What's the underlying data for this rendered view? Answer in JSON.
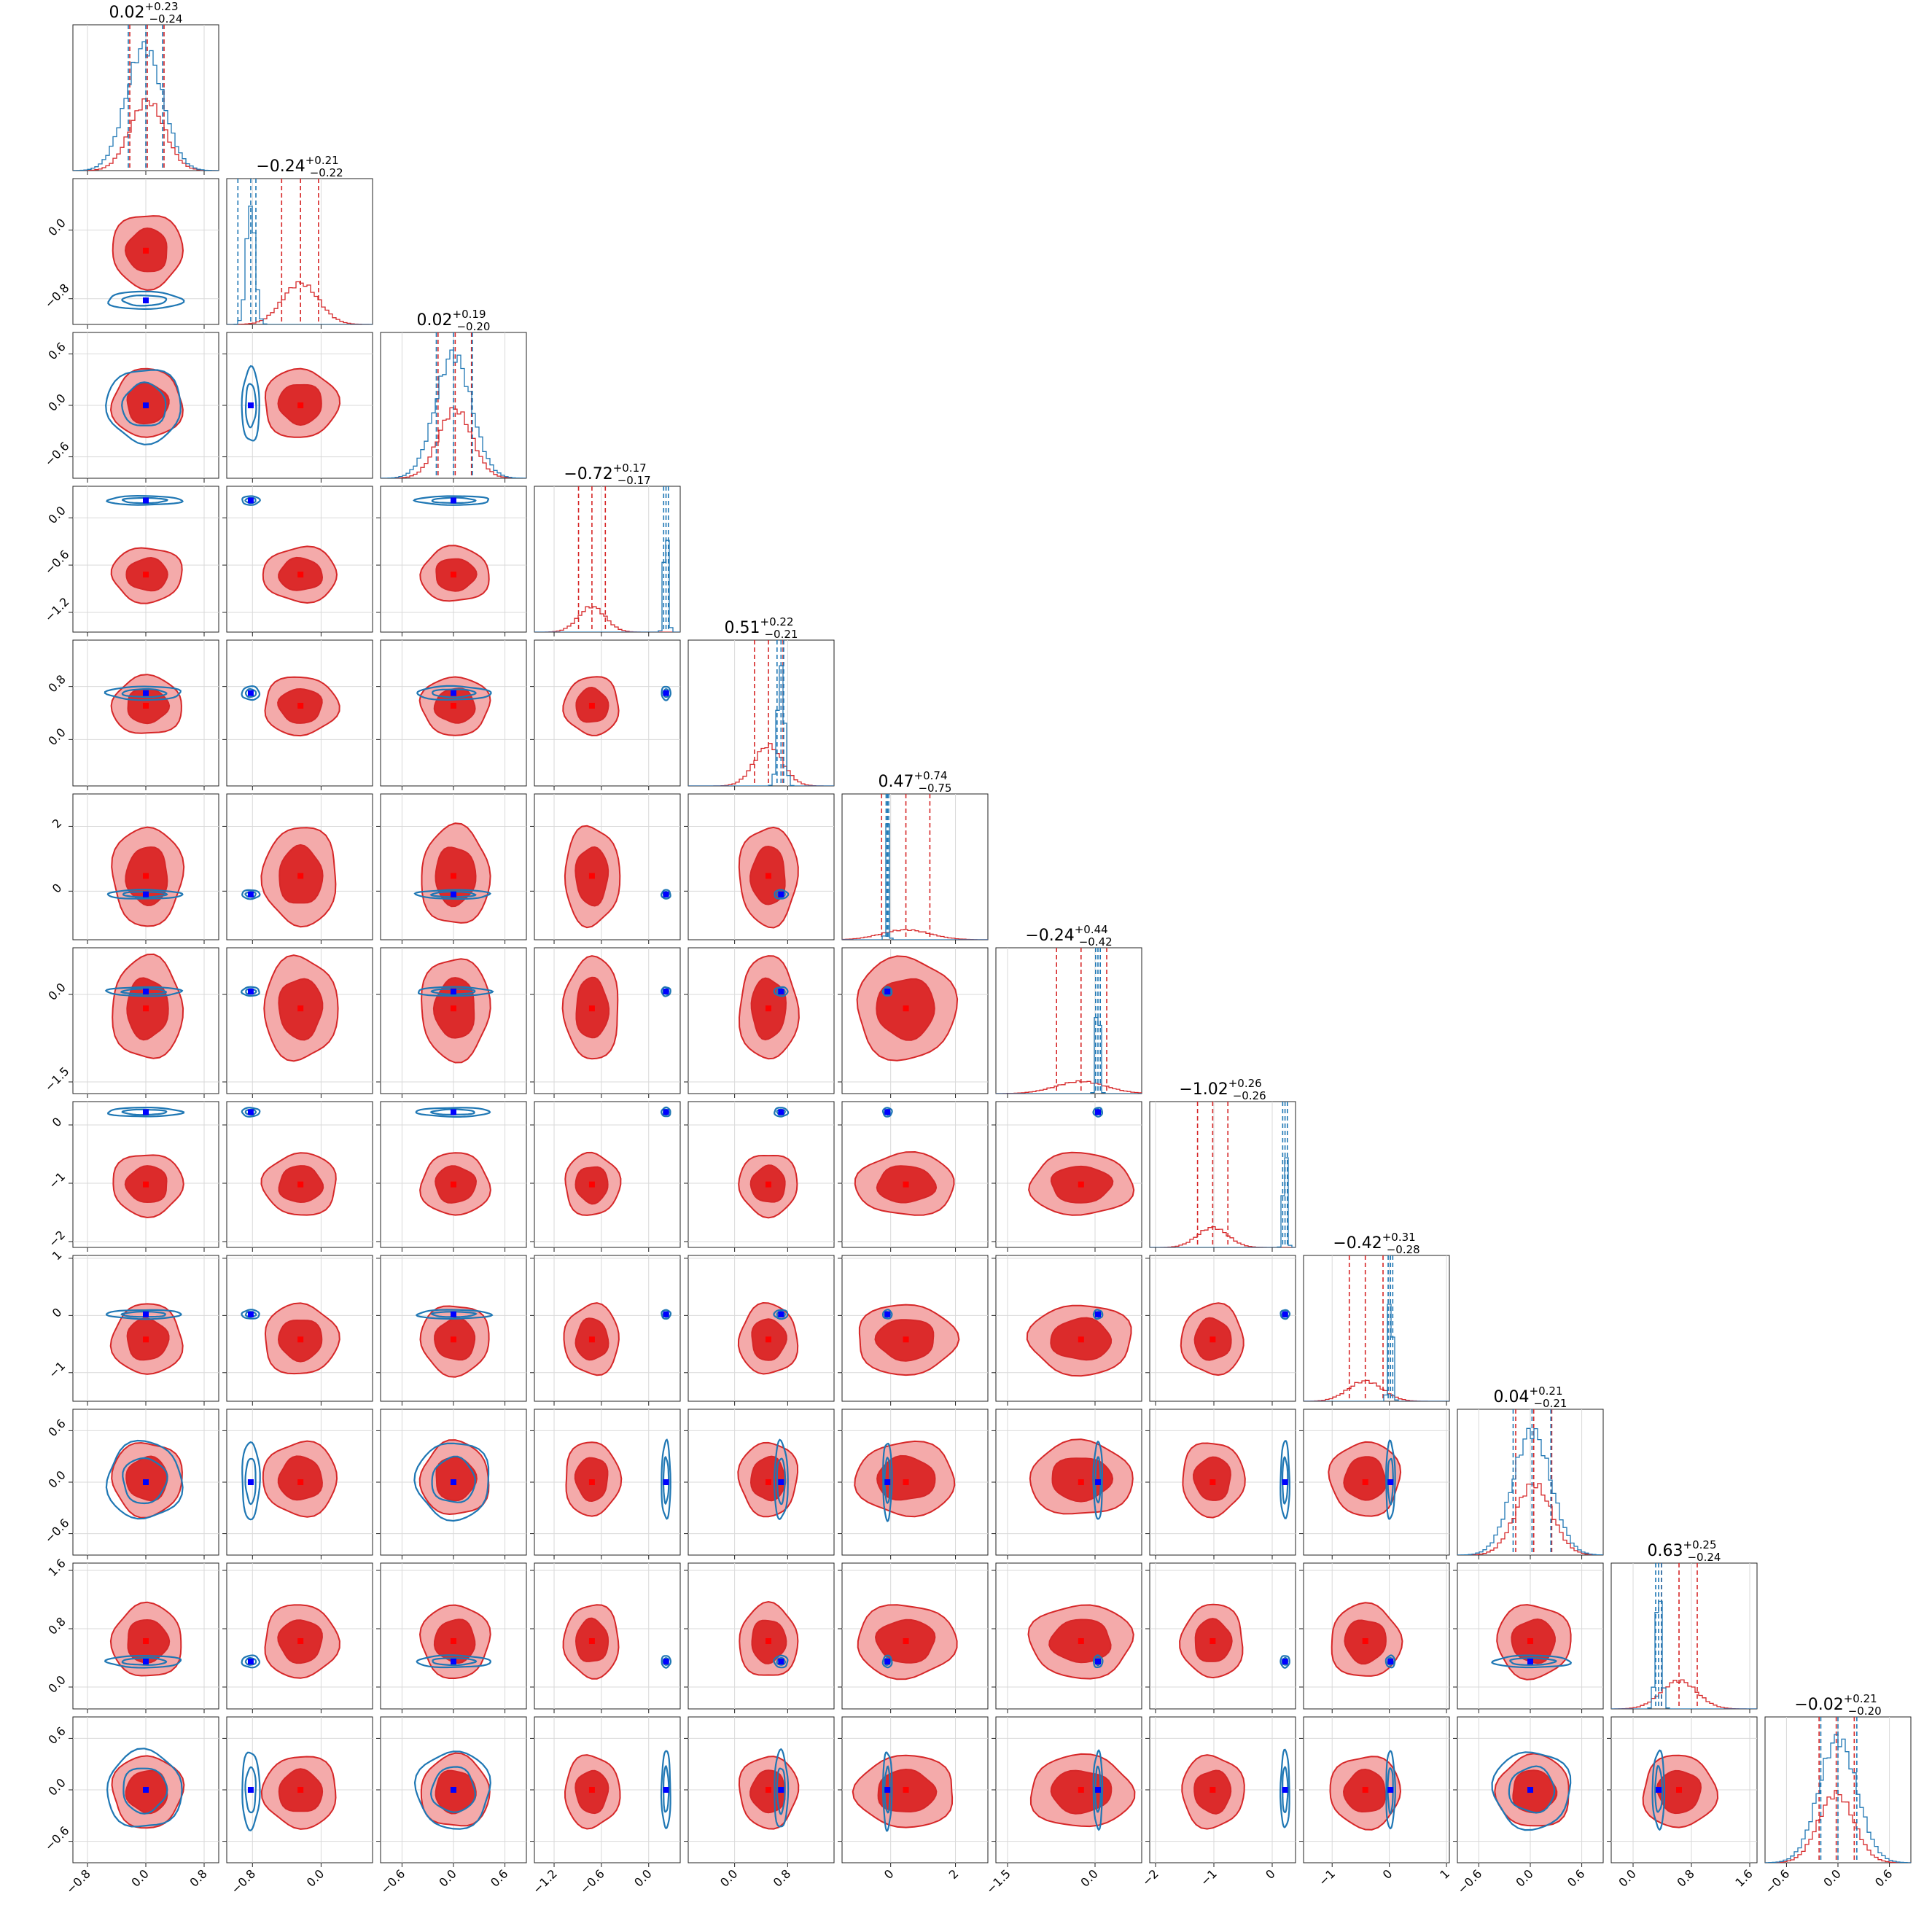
{
  "chart_data": {
    "type": "corner",
    "grid": true,
    "series": [
      {
        "name": "",
        "color": "#d62728",
        "marker_color": "#ff0000"
      },
      {
        "name": "",
        "color": "#1f77b4",
        "marker_color": "#0000ff"
      }
    ],
    "parameters": [
      {
        "title": "0.02",
        "plus": "+0.23",
        "minus": "−0.24",
        "range": [
          -1.0,
          1.0
        ],
        "ticks": [
          -0.8,
          0.0,
          0.8
        ],
        "tick_labels": [
          "−0.8",
          "0.0",
          "0.8"
        ],
        "red": {
          "mean": 0.02,
          "sd": 0.235,
          "q": [
            -0.22,
            0.02,
            0.25
          ]
        },
        "blue": {
          "mean": -0.02,
          "sd": 0.25,
          "q": [
            -0.24,
            0.0,
            0.23
          ]
        },
        "truth": [
          0.0,
          0.0
        ]
      },
      {
        "title": "−0.24",
        "plus": "+0.21",
        "minus": "−0.22",
        "range": [
          -1.1,
          0.6
        ],
        "ticks": [
          -0.8,
          0.0
        ],
        "tick_labels": [
          "−0.8",
          "0.0"
        ],
        "red": {
          "mean": -0.24,
          "sd": 0.21,
          "q": [
            -0.46,
            -0.24,
            -0.03
          ]
        },
        "blue": {
          "mean": -0.82,
          "sd": 0.05,
          "q": [
            -0.97,
            -0.82,
            -0.76
          ]
        },
        "truth": [
          -0.24,
          -0.82
        ]
      },
      {
        "title": "0.02",
        "plus": "+0.19",
        "minus": "−0.20",
        "range": [
          -0.85,
          0.85
        ],
        "ticks": [
          -0.6,
          0.0,
          0.6
        ],
        "tick_labels": [
          "−0.6",
          "0.0",
          "0.6"
        ],
        "red": {
          "mean": 0.02,
          "sd": 0.195,
          "q": [
            -0.18,
            0.02,
            0.21
          ]
        },
        "blue": {
          "mean": 0.0,
          "sd": 0.21,
          "q": [
            -0.2,
            0.0,
            0.22
          ]
        },
        "truth": [
          0.0,
          0.0
        ]
      },
      {
        "title": "−0.72",
        "plus": "+0.17",
        "minus": "−0.17",
        "range": [
          -1.45,
          0.4
        ],
        "ticks": [
          -1.2,
          -0.6,
          0.0
        ],
        "tick_labels": [
          "−1.2",
          "−0.6",
          "0.0"
        ],
        "red": {
          "mean": -0.72,
          "sd": 0.17,
          "q": [
            -0.89,
            -0.72,
            -0.55
          ]
        },
        "blue": {
          "mean": 0.22,
          "sd": 0.025,
          "q": [
            0.19,
            0.22,
            0.25
          ]
        },
        "truth": [
          -0.72,
          0.22
        ]
      },
      {
        "title": "0.51",
        "plus": "+0.22",
        "minus": "−0.21",
        "range": [
          -0.7,
          1.5
        ],
        "ticks": [
          0.0,
          0.8
        ],
        "tick_labels": [
          "0.0",
          "0.8"
        ],
        "red": {
          "mean": 0.51,
          "sd": 0.215,
          "q": [
            0.3,
            0.51,
            0.73
          ]
        },
        "blue": {
          "mean": 0.7,
          "sd": 0.05,
          "q": [
            0.64,
            0.7,
            0.74
          ]
        },
        "truth": [
          0.51,
          0.7
        ]
      },
      {
        "title": "0.47",
        "plus": "+0.74",
        "minus": "−0.75",
        "range": [
          -1.5,
          3.0
        ],
        "ticks": [
          0,
          2
        ],
        "tick_labels": [
          "0",
          "2"
        ],
        "red": {
          "mean": 0.47,
          "sd": 0.745,
          "q": [
            -0.28,
            0.47,
            1.21
          ]
        },
        "blue": {
          "mean": -0.1,
          "sd": 0.04,
          "q": [
            -0.14,
            -0.1,
            -0.06
          ]
        },
        "truth": [
          0.47,
          -0.1
        ]
      },
      {
        "title": "−0.24",
        "plus": "+0.44",
        "minus": "−0.42",
        "range": [
          -1.7,
          0.8
        ],
        "ticks": [
          -1.5,
          0.0
        ],
        "tick_labels": [
          "−1.5",
          "0.0"
        ],
        "red": {
          "mean": -0.24,
          "sd": 0.43,
          "q": [
            -0.66,
            -0.24,
            0.2
          ]
        },
        "blue": {
          "mean": 0.05,
          "sd": 0.03,
          "q": [
            0.01,
            0.05,
            0.09
          ]
        },
        "truth": [
          -0.24,
          0.05
        ]
      },
      {
        "title": "−1.02",
        "plus": "+0.26",
        "minus": "−0.26",
        "range": [
          -2.1,
          0.4
        ],
        "ticks": [
          -2,
          -1,
          0
        ],
        "tick_labels": [
          "−2",
          "−1",
          "0"
        ],
        "red": {
          "mean": -1.02,
          "sd": 0.26,
          "q": [
            -1.28,
            -1.02,
            -0.76
          ]
        },
        "blue": {
          "mean": 0.22,
          "sd": 0.03,
          "q": [
            0.18,
            0.22,
            0.26
          ]
        },
        "truth": [
          -1.02,
          0.22
        ]
      },
      {
        "title": "−0.42",
        "plus": "+0.31",
        "minus": "−0.28",
        "range": [
          -1.5,
          1.05
        ],
        "ticks": [
          -1,
          0,
          1
        ],
        "tick_labels": [
          "−1",
          "0",
          "1"
        ],
        "red": {
          "mean": -0.42,
          "sd": 0.3,
          "q": [
            -0.7,
            -0.42,
            -0.11
          ]
        },
        "blue": {
          "mean": 0.02,
          "sd": 0.035,
          "q": [
            -0.02,
            0.02,
            0.06
          ]
        },
        "truth": [
          -0.42,
          0.02
        ]
      },
      {
        "title": "0.04",
        "plus": "+0.21",
        "minus": "−0.21",
        "range": [
          -0.85,
          0.85
        ],
        "ticks": [
          -0.6,
          0.0,
          0.6
        ],
        "tick_labels": [
          "−0.6",
          "0.0",
          "0.6"
        ],
        "red": {
          "mean": 0.04,
          "sd": 0.21,
          "q": [
            -0.17,
            0.04,
            0.25
          ]
        },
        "blue": {
          "mean": 0.02,
          "sd": 0.22,
          "q": [
            -0.2,
            0.02,
            0.24
          ]
        },
        "truth": [
          0.0,
          0.0
        ]
      },
      {
        "title": "0.63",
        "plus": "+0.25",
        "minus": "−0.24",
        "range": [
          -0.3,
          1.7
        ],
        "ticks": [
          0.0,
          0.8,
          1.6
        ],
        "tick_labels": [
          "0.0",
          "0.8",
          "1.6"
        ],
        "red": {
          "mean": 0.63,
          "sd": 0.245,
          "q": [
            0.39,
            0.63,
            0.88
          ]
        },
        "blue": {
          "mean": 0.35,
          "sd": 0.04,
          "q": [
            0.31,
            0.35,
            0.39
          ]
        },
        "truth": [
          0.63,
          0.35
        ]
      },
      {
        "title": "−0.02",
        "plus": "+0.21",
        "minus": "−0.20",
        "range": [
          -0.85,
          0.85
        ],
        "ticks": [
          -0.6,
          0.0,
          0.6
        ],
        "tick_labels": [
          "−0.6",
          "0.0",
          "0.6"
        ],
        "red": {
          "mean": -0.02,
          "sd": 0.205,
          "q": [
            -0.22,
            -0.02,
            0.19
          ]
        },
        "blue": {
          "mean": 0.0,
          "sd": 0.22,
          "q": [
            -0.2,
            0.0,
            0.22
          ]
        },
        "truth": [
          0.0,
          0.0
        ]
      }
    ]
  }
}
